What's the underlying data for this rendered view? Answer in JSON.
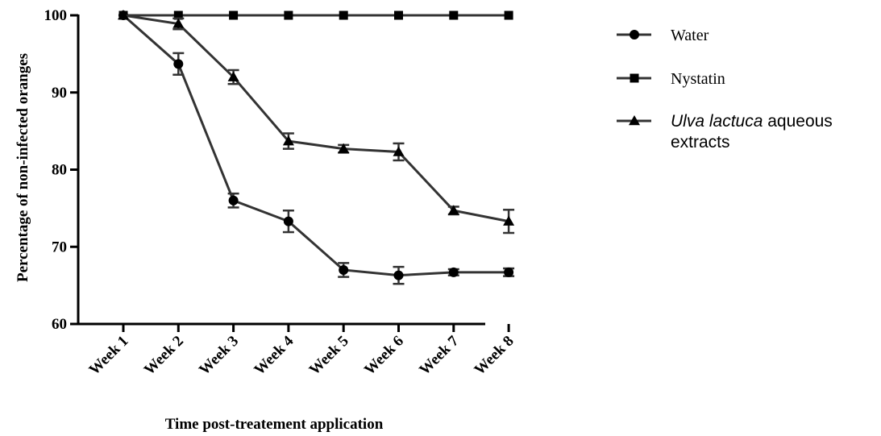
{
  "chart_data": {
    "type": "line",
    "xlabel": "Time post-treatement application",
    "ylabel": "Percentage of non-infected oranges",
    "ylim": [
      60,
      100
    ],
    "yticks": [
      60,
      70,
      80,
      90,
      100
    ],
    "categories": [
      "Week 1",
      "Week 2",
      "Week 3",
      "Week 4",
      "Week 5",
      "Week 6",
      "Week 7",
      "Week 8"
    ],
    "legend_position": "right",
    "line_color": "#333333",
    "series": [
      {
        "name": "Water",
        "marker": "circle",
        "values": [
          100,
          93.7,
          76.0,
          73.3,
          67.0,
          66.3,
          66.7,
          66.7
        ],
        "errors": [
          0,
          1.4,
          0.9,
          1.4,
          0.9,
          1.1,
          0.4,
          0.5
        ]
      },
      {
        "name": "Nystatin",
        "marker": "square",
        "values": [
          100,
          100,
          100,
          100,
          100,
          100,
          100,
          100
        ],
        "errors": [
          0,
          0,
          0,
          0,
          0,
          0,
          0,
          0
        ]
      },
      {
        "name_italic": "Ulva lactuca",
        "name_rest": " aqueous",
        "name_line2": "extracts",
        "marker": "triangle",
        "values": [
          100,
          98.9,
          92.0,
          83.7,
          82.7,
          82.3,
          74.7,
          73.3
        ],
        "errors": [
          0,
          0.7,
          0.9,
          1.0,
          0.5,
          1.1,
          0.5,
          1.5
        ]
      }
    ]
  }
}
